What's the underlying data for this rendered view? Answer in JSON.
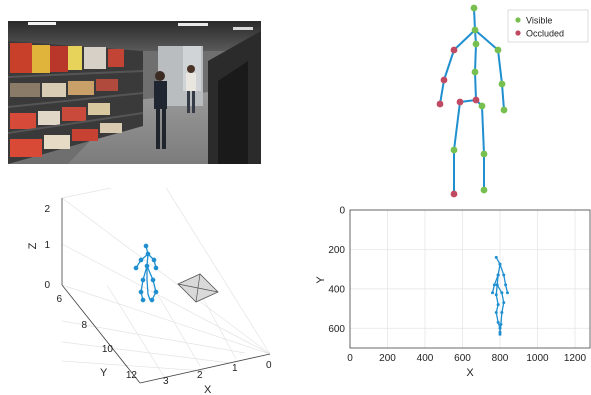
{
  "legend": {
    "visible_label": "Visible",
    "occluded_label": "Occluded",
    "visible_color": "#77c04f",
    "occluded_color": "#c04a62"
  },
  "bone_color": "#1f8fd0",
  "skeleton": {
    "joints": {
      "head": {
        "state": "visible"
      },
      "neck": {
        "state": "visible"
      },
      "chest": {
        "state": "visible"
      },
      "spine": {
        "state": "visible"
      },
      "pelvis": {
        "state": "occluded"
      },
      "hip_l": {
        "state": "occluded"
      },
      "hip_r": {
        "state": "visible"
      },
      "sh_l": {
        "state": "occluded"
      },
      "sh_r": {
        "state": "visible"
      },
      "el_l": {
        "state": "occluded"
      },
      "el_r": {
        "state": "visible"
      },
      "wr_l": {
        "state": "occluded"
      },
      "wr_r": {
        "state": "visible"
      },
      "kn_l": {
        "state": "visible"
      },
      "kn_r": {
        "state": "visible"
      },
      "an_l": {
        "state": "occluded"
      },
      "an_r": {
        "state": "visible"
      }
    }
  },
  "plot3d": {
    "x_label": "X",
    "y_label": "Y",
    "z_label": "Z",
    "x_ticks": [
      "3",
      "2",
      "1",
      "0"
    ],
    "y_ticks": [
      "6",
      "8",
      "10",
      "12"
    ],
    "z_ticks": [
      "0",
      "1",
      "2"
    ]
  },
  "chart_data": {
    "type": "line",
    "xlabel": "X",
    "ylabel": "Y",
    "xlim": [
      0,
      1280
    ],
    "ylim": [
      700,
      0
    ],
    "x_ticks": [
      "0",
      "200",
      "400",
      "600",
      "800",
      "1000",
      "1200"
    ],
    "y_ticks": [
      "0",
      "200",
      "400",
      "600"
    ],
    "grid": true,
    "series": [
      {
        "points": [
          [
            780,
            240
          ],
          [
            800,
            275
          ],
          [
            790,
            330
          ],
          [
            785,
            380
          ],
          [
            780,
            430
          ],
          [
            790,
            480
          ],
          [
            780,
            520
          ],
          [
            790,
            570
          ],
          [
            800,
            600
          ],
          [
            800,
            630
          ]
        ]
      },
      {
        "points": [
          [
            800,
            275
          ],
          [
            820,
            330
          ],
          [
            830,
            380
          ],
          [
            840,
            420
          ]
        ]
      },
      {
        "points": [
          [
            790,
            330
          ],
          [
            770,
            380
          ],
          [
            760,
            420
          ]
        ]
      },
      {
        "points": [
          [
            785,
            380
          ],
          [
            810,
            420
          ],
          [
            820,
            470
          ],
          [
            810,
            520
          ],
          [
            805,
            580
          ],
          [
            800,
            620
          ]
        ]
      }
    ]
  }
}
